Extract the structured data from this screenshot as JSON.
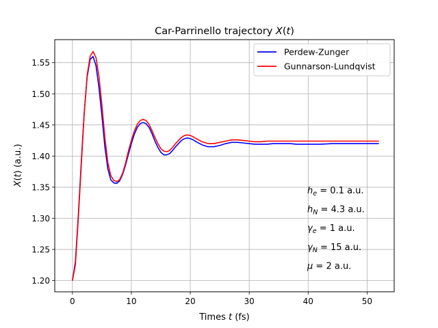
{
  "chart_data": {
    "type": "line",
    "title": "Car-Parrinello trajectory X(t)",
    "xlabel": "Times t (fs)",
    "ylabel": "X(t) (a.u.)",
    "xlim": [
      -3,
      54.6
    ],
    "ylim": [
      1.182,
      1.587
    ],
    "xticks": [
      0,
      10,
      20,
      30,
      40,
      50
    ],
    "yticks": [
      1.2,
      1.25,
      1.3,
      1.35,
      1.4,
      1.45,
      1.5,
      1.55
    ],
    "grid": true,
    "legend_position": "top-right",
    "series": [
      {
        "name": "Perdew-Zunger",
        "color": "#0000ff",
        "x": [
          0,
          0.5,
          1,
          1.5,
          2,
          2.5,
          3,
          3.5,
          4,
          4.5,
          5,
          5.5,
          6,
          6.5,
          7,
          7.5,
          8,
          8.5,
          9,
          9.5,
          10,
          10.5,
          11,
          11.5,
          12,
          12.5,
          13,
          13.5,
          14,
          14.5,
          15,
          15.5,
          16,
          16.5,
          17,
          17.5,
          18,
          18.5,
          19,
          19.5,
          20,
          20.5,
          21,
          22,
          23,
          24,
          25,
          26,
          27,
          28,
          29,
          30,
          31,
          32,
          33,
          34,
          35,
          36,
          37,
          38,
          40,
          42,
          44,
          46,
          48,
          50,
          52
        ],
        "y": [
          1.2,
          1.23,
          1.305,
          1.39,
          1.47,
          1.527,
          1.555,
          1.56,
          1.545,
          1.51,
          1.465,
          1.415,
          1.38,
          1.362,
          1.357,
          1.356,
          1.36,
          1.37,
          1.385,
          1.403,
          1.42,
          1.435,
          1.446,
          1.452,
          1.454,
          1.452,
          1.446,
          1.436,
          1.424,
          1.414,
          1.406,
          1.402,
          1.402,
          1.404,
          1.409,
          1.415,
          1.42,
          1.425,
          1.428,
          1.429,
          1.428,
          1.426,
          1.423,
          1.418,
          1.415,
          1.415,
          1.417,
          1.42,
          1.422,
          1.422,
          1.421,
          1.42,
          1.419,
          1.419,
          1.419,
          1.42,
          1.42,
          1.42,
          1.42,
          1.419,
          1.419,
          1.419,
          1.42,
          1.42,
          1.42,
          1.42,
          1.42
        ]
      },
      {
        "name": "Gunnarson-Lundqvist",
        "color": "#ff0000",
        "x": [
          0,
          0.5,
          1,
          1.5,
          2,
          2.5,
          3,
          3.5,
          4,
          4.5,
          5,
          5.5,
          6,
          6.5,
          7,
          7.5,
          8,
          8.5,
          9,
          9.5,
          10,
          10.5,
          11,
          11.5,
          12,
          12.5,
          13,
          13.5,
          14,
          14.5,
          15,
          15.5,
          16,
          16.5,
          17,
          17.5,
          18,
          18.5,
          19,
          19.5,
          20,
          20.5,
          21,
          22,
          23,
          24,
          25,
          26,
          27,
          28,
          29,
          30,
          31,
          32,
          33,
          34,
          35,
          36,
          37,
          38,
          40,
          42,
          44,
          46,
          48,
          50,
          52
        ],
        "y": [
          1.2,
          1.225,
          1.3,
          1.385,
          1.468,
          1.53,
          1.56,
          1.568,
          1.558,
          1.528,
          1.482,
          1.43,
          1.39,
          1.369,
          1.361,
          1.359,
          1.362,
          1.372,
          1.388,
          1.408,
          1.425,
          1.44,
          1.451,
          1.457,
          1.459,
          1.457,
          1.451,
          1.441,
          1.43,
          1.42,
          1.412,
          1.408,
          1.407,
          1.409,
          1.414,
          1.42,
          1.425,
          1.43,
          1.433,
          1.434,
          1.433,
          1.431,
          1.428,
          1.423,
          1.42,
          1.42,
          1.422,
          1.424,
          1.426,
          1.426,
          1.425,
          1.424,
          1.423,
          1.423,
          1.424,
          1.424,
          1.424,
          1.424,
          1.424,
          1.424,
          1.424,
          1.424,
          1.424,
          1.424,
          1.424,
          1.424,
          1.424
        ]
      }
    ],
    "annotations": [
      {
        "base": "h",
        "sub": "e",
        "rest": " = 0.1 a.u."
      },
      {
        "base": "h",
        "sub": "N",
        "rest": " = 4.3 a.u."
      },
      {
        "base": "γ",
        "sub": "e",
        "rest": " = 1 a.u."
      },
      {
        "base": "γ",
        "sub": "N",
        "rest": " = 15 a.u."
      },
      {
        "base": "μ",
        "sub": "",
        "rest": " = 2 a.u."
      }
    ]
  }
}
